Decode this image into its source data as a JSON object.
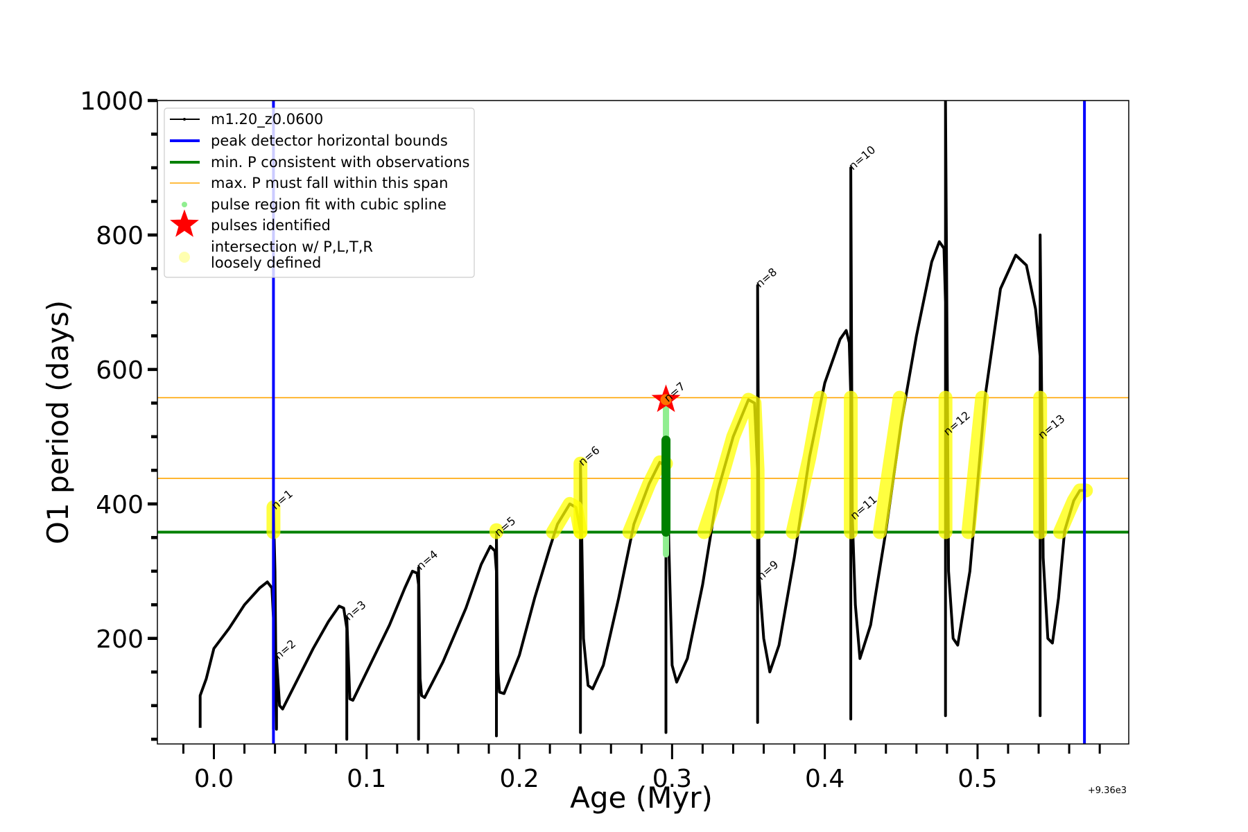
{
  "chart_data": {
    "type": "line",
    "title": "",
    "xlabel": "Age (Myr)",
    "ylabel": "O1 period (days)",
    "x_offset_label": "+9.36e3",
    "xlim": [
      -0.037,
      0.599
    ],
    "ylim": [
      43,
      1000
    ],
    "xticks": [
      0.0,
      0.1,
      0.2,
      0.3,
      0.4,
      0.5
    ],
    "xtick_labels": [
      "0.0",
      "0.1",
      "0.2",
      "0.3",
      "0.4",
      "0.5"
    ],
    "yticks": [
      200,
      400,
      600,
      800,
      1000
    ],
    "ytick_labels": [
      "200",
      "400",
      "600",
      "800",
      "1000"
    ],
    "grid": false,
    "legend_position": "top-left",
    "legend": [
      {
        "label": "m1.20_z0.0600",
        "kind": "line-marker",
        "color": "#000000"
      },
      {
        "label": "peak detector horizontal bounds",
        "kind": "line-thick",
        "color": "#0000ff"
      },
      {
        "label": "min. P consistent with observations",
        "kind": "line-thick",
        "color": "#008000"
      },
      {
        "label": "max. P must fall within this span",
        "kind": "line-thin",
        "color": "#ffa500"
      },
      {
        "label": "pulse region fit with cubic spline",
        "kind": "dot",
        "color": "#90ee90"
      },
      {
        "label": "pulses identified",
        "kind": "star",
        "color": "#ff0000"
      },
      {
        "label": "intersection w/ P,L,T,R",
        "label2": "loosely defined",
        "kind": "circle",
        "color": "#ffffb0"
      }
    ],
    "vlines": [
      {
        "x": 0.039,
        "color": "#0000ff"
      },
      {
        "x": 0.57,
        "color": "#0000ff"
      }
    ],
    "hlines": [
      {
        "y": 358,
        "color": "#008000",
        "width": "thick"
      },
      {
        "y": 438,
        "color": "#ffa500",
        "width": "thin"
      },
      {
        "y": 558,
        "color": "#ffa500",
        "width": "thin"
      }
    ],
    "series": [
      {
        "name": "m1.20_z0.0600",
        "color": "#000000",
        "points": [
          [
            -0.009,
            67
          ],
          [
            -0.009,
            115
          ],
          [
            -0.005,
            140
          ],
          [
            0.0,
            185
          ],
          [
            0.01,
            215
          ],
          [
            0.02,
            250
          ],
          [
            0.03,
            275
          ],
          [
            0.035,
            284
          ],
          [
            0.038,
            275
          ],
          [
            0.039,
            230
          ],
          [
            0.039,
            65
          ],
          [
            0.039,
            395
          ],
          [
            0.04,
            300
          ],
          [
            0.041,
            65
          ],
          [
            0.041,
            172
          ],
          [
            0.043,
            100
          ],
          [
            0.045,
            95
          ],
          [
            0.055,
            140
          ],
          [
            0.065,
            185
          ],
          [
            0.075,
            225
          ],
          [
            0.082,
            248
          ],
          [
            0.085,
            245
          ],
          [
            0.087,
            215
          ],
          [
            0.087,
            50
          ],
          [
            0.087,
            230
          ],
          [
            0.089,
            110
          ],
          [
            0.091,
            108
          ],
          [
            0.1,
            150
          ],
          [
            0.115,
            220
          ],
          [
            0.125,
            275
          ],
          [
            0.13,
            300
          ],
          [
            0.133,
            297
          ],
          [
            0.134,
            280
          ],
          [
            0.134,
            50
          ],
          [
            0.134,
            305
          ],
          [
            0.135,
            140
          ],
          [
            0.136,
            115
          ],
          [
            0.138,
            112
          ],
          [
            0.15,
            165
          ],
          [
            0.165,
            245
          ],
          [
            0.175,
            310
          ],
          [
            0.181,
            337
          ],
          [
            0.184,
            330
          ],
          [
            0.185,
            300
          ],
          [
            0.185,
            55
          ],
          [
            0.185,
            355
          ],
          [
            0.186,
            150
          ],
          [
            0.187,
            120
          ],
          [
            0.19,
            118
          ],
          [
            0.2,
            175
          ],
          [
            0.21,
            260
          ],
          [
            0.22,
            335
          ],
          [
            0.225,
            370
          ],
          [
            0.233,
            400
          ],
          [
            0.237,
            395
          ],
          [
            0.24,
            360
          ],
          [
            0.24,
            60
          ],
          [
            0.24,
            460
          ],
          [
            0.242,
            200
          ],
          [
            0.245,
            130
          ],
          [
            0.248,
            125
          ],
          [
            0.255,
            160
          ],
          [
            0.265,
            260
          ],
          [
            0.275,
            370
          ],
          [
            0.285,
            430
          ],
          [
            0.292,
            462
          ],
          [
            0.296,
            455
          ],
          [
            0.296,
            60
          ],
          [
            0.296,
            555
          ],
          [
            0.298,
            330
          ],
          [
            0.3,
            160
          ],
          [
            0.303,
            135
          ],
          [
            0.31,
            170
          ],
          [
            0.32,
            280
          ],
          [
            0.33,
            420
          ],
          [
            0.34,
            500
          ],
          [
            0.35,
            555
          ],
          [
            0.354,
            550
          ],
          [
            0.356,
            450
          ],
          [
            0.356,
            75
          ],
          [
            0.356,
            725
          ],
          [
            0.357,
            290
          ],
          [
            0.36,
            200
          ],
          [
            0.364,
            150
          ],
          [
            0.37,
            190
          ],
          [
            0.38,
            320
          ],
          [
            0.39,
            470
          ],
          [
            0.4,
            580
          ],
          [
            0.41,
            645
          ],
          [
            0.414,
            658
          ],
          [
            0.416,
            640
          ],
          [
            0.417,
            560
          ],
          [
            0.417,
            80
          ],
          [
            0.417,
            900
          ],
          [
            0.418,
            380
          ],
          [
            0.42,
            250
          ],
          [
            0.423,
            170
          ],
          [
            0.43,
            220
          ],
          [
            0.44,
            360
          ],
          [
            0.45,
            520
          ],
          [
            0.46,
            650
          ],
          [
            0.47,
            760
          ],
          [
            0.475,
            790
          ],
          [
            0.478,
            780
          ],
          [
            0.479,
            700
          ],
          [
            0.479,
            85
          ],
          [
            0.479,
            1000
          ],
          [
            0.481,
            300
          ],
          [
            0.484,
            200
          ],
          [
            0.487,
            190
          ],
          [
            0.495,
            300
          ],
          [
            0.505,
            560
          ],
          [
            0.515,
            720
          ],
          [
            0.525,
            770
          ],
          [
            0.532,
            755
          ],
          [
            0.538,
            690
          ],
          [
            0.541,
            620
          ],
          [
            0.541,
            85
          ],
          [
            0.541,
            800
          ],
          [
            0.543,
            320
          ],
          [
            0.546,
            200
          ],
          [
            0.549,
            193
          ],
          [
            0.553,
            260
          ],
          [
            0.557,
            360
          ],
          [
            0.563,
            405
          ],
          [
            0.567,
            420
          ],
          [
            0.571,
            420
          ]
        ]
      }
    ],
    "intersection_regions": [
      [
        [
          0.039,
          358
        ],
        [
          0.039,
          395
        ]
      ],
      [
        [
          0.185,
          358
        ],
        [
          0.185,
          361
        ]
      ],
      [
        [
          0.222,
          358
        ],
        [
          0.233,
          400
        ],
        [
          0.237,
          395
        ],
        [
          0.24,
          358
        ]
      ],
      [
        [
          0.24,
          358
        ],
        [
          0.24,
          460
        ]
      ],
      [
        [
          0.272,
          358
        ],
        [
          0.285,
          430
        ],
        [
          0.292,
          462
        ],
        [
          0.296,
          460
        ]
      ],
      [
        [
          0.321,
          358
        ],
        [
          0.33,
          420
        ],
        [
          0.34,
          500
        ],
        [
          0.35,
          555
        ],
        [
          0.354,
          550
        ],
        [
          0.356,
          450
        ],
        [
          0.356,
          358
        ]
      ],
      [
        [
          0.379,
          358
        ],
        [
          0.39,
          470
        ],
        [
          0.397,
          558
        ]
      ],
      [
        [
          0.417,
          358
        ],
        [
          0.417,
          558
        ]
      ],
      [
        [
          0.436,
          358
        ],
        [
          0.449,
          558
        ]
      ],
      [
        [
          0.479,
          358
        ],
        [
          0.479,
          558
        ]
      ],
      [
        [
          0.494,
          358
        ],
        [
          0.503,
          558
        ]
      ],
      [
        [
          0.541,
          358
        ],
        [
          0.541,
          558
        ]
      ],
      [
        [
          0.554,
          358
        ],
        [
          0.563,
          405
        ],
        [
          0.567,
          420
        ],
        [
          0.571,
          420
        ]
      ]
    ],
    "spline_fit": {
      "x": 0.296,
      "dark_range": [
        358,
        495
      ],
      "light_range": [
        325,
        545
      ]
    },
    "pulses_identified": [
      {
        "x": 0.296,
        "y": 555
      }
    ],
    "annotations": [
      {
        "text": "n=1",
        "x": 0.039,
        "y": 395
      },
      {
        "text": "n=2",
        "x": 0.041,
        "y": 172
      },
      {
        "text": "n=3",
        "x": 0.087,
        "y": 230
      },
      {
        "text": "n=4",
        "x": 0.134,
        "y": 305
      },
      {
        "text": "n=5",
        "x": 0.185,
        "y": 355
      },
      {
        "text": "n=6",
        "x": 0.24,
        "y": 460
      },
      {
        "text": "n=7",
        "x": 0.296,
        "y": 555
      },
      {
        "text": "n=8",
        "x": 0.356,
        "y": 725
      },
      {
        "text": "n=9",
        "x": 0.357,
        "y": 290
      },
      {
        "text": "n=10",
        "x": 0.417,
        "y": 900
      },
      {
        "text": "n=11",
        "x": 0.418,
        "y": 380
      },
      {
        "text": "n=12",
        "x": 0.479,
        "y": 505
      },
      {
        "text": "n=13",
        "x": 0.541,
        "y": 500
      }
    ]
  }
}
